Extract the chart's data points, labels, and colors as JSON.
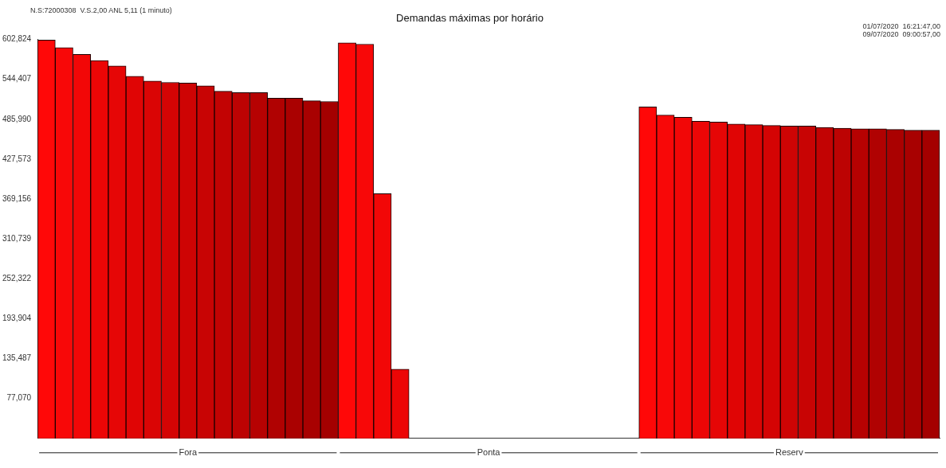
{
  "chart_data": {
    "type": "bar",
    "title": "Demandas máximas por horário",
    "annotations": [
      "N.S:72000308  V.S.2,00 ANL 5,11 (1 minuto)",
      "01/07/2020  16:21:47,00",
      "09/07/2020  09:00:57,00"
    ],
    "categories": [
      null,
      null,
      null,
      null,
      null,
      null,
      null,
      null,
      "Fora",
      null,
      null,
      null,
      null,
      null,
      null,
      null,
      null,
      null,
      null,
      null,
      null,
      null,
      null,
      null,
      null,
      "Ponta",
      null,
      null,
      null,
      null,
      null,
      null,
      null,
      null,
      null,
      null,
      null,
      null,
      null,
      null,
      null,
      null,
      "Reserv",
      null,
      null,
      null,
      null,
      null,
      null,
      null,
      null
    ],
    "values": [
      602000,
      591000,
      581000,
      572000,
      564000,
      549000,
      542000,
      540000,
      539000,
      535000,
      527000,
      525000,
      525000,
      517000,
      517000,
      513000,
      512000,
      598000,
      596000,
      377000,
      120000,
      null,
      null,
      null,
      null,
      null,
      null,
      null,
      null,
      null,
      null,
      null,
      null,
      null,
      504000,
      492000,
      489000,
      483000,
      482000,
      479000,
      478000,
      477000,
      476000,
      476000,
      474000,
      473000,
      472000,
      472000,
      471000,
      470000,
      470000
    ],
    "colors": [
      "#ff0808",
      "#f80808",
      "#f20707",
      "#ec0606",
      "#e60606",
      "#e00505",
      "#da0505",
      "#d40404",
      "#ce0404",
      "#c80404",
      "#c20303",
      "#bc0303",
      "#b60202",
      "#b00202",
      "#aa0101",
      "#a80101",
      "#a40000",
      "#ff0808",
      "#f80808",
      "#f20707",
      "#ec0606",
      "#e60606",
      "#e00505",
      "#da0505",
      "#d40404",
      "#ce0404",
      "#c80404",
      "#c20303",
      "#bc0303",
      "#b60202",
      "#b00202",
      "#aa0101",
      "#a80101",
      "#a40000",
      "#ff0808",
      "#f80808",
      "#f20707",
      "#ec0606",
      "#e60606",
      "#e00505",
      "#da0505",
      "#d40404",
      "#ce0404",
      "#c80404",
      "#c20303",
      "#bc0303",
      "#b60202",
      "#b00202",
      "#aa0101",
      "#a80101",
      "#a40000"
    ],
    "ylim": [
      18653,
      602824
    ],
    "yticks": [
      {
        "value": 602824,
        "label": "602,824"
      },
      {
        "value": 544407,
        "label": "544,407"
      },
      {
        "value": 485990,
        "label": "485,990"
      },
      {
        "value": 427573,
        "label": "427,573"
      },
      {
        "value": 369156,
        "label": "369,156"
      },
      {
        "value": 310739,
        "label": "310,739"
      },
      {
        "value": 252322,
        "label": "252,322"
      },
      {
        "value": 193904,
        "label": "193,904"
      },
      {
        "value": 135487,
        "label": "135,487"
      },
      {
        "value": 77070,
        "label": "77,070"
      }
    ],
    "grid": false,
    "legend": false
  }
}
